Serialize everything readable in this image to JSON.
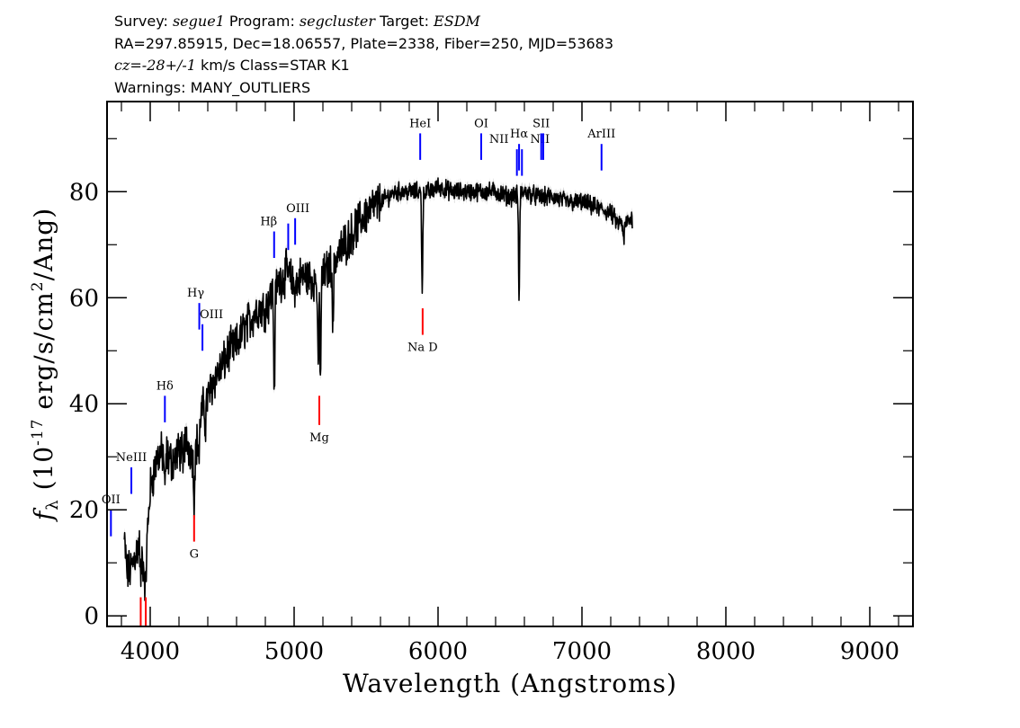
{
  "header": {
    "survey_label": "Survey: ",
    "survey": "segue1",
    "program_label": " Program: ",
    "program": "segcluster",
    "target_label": " Target: ",
    "target": "ESDM",
    "line2": "RA=297.85915, Dec=18.06557, Plate=2338, Fiber=250, MJD=53683",
    "cz_label": "cz",
    "cz_value": "=-28+/-1",
    "cz_rest": " km/s Class=STAR K1",
    "line4": "Warnings: MANY_OUTLIERS"
  },
  "chart_data": {
    "type": "line",
    "title": "",
    "xlabel": "Wavelength (Angstroms)",
    "ylabel_parts": {
      "f": "f",
      "sub": "λ",
      "mid": " (10",
      "exp1": "-17",
      "rest1": " erg/s/cm",
      "exp2": "2",
      "rest2": "/Ang)"
    },
    "xlim": [
      3700,
      9300
    ],
    "ylim": [
      -2,
      97
    ],
    "x_ticks": [
      4000,
      5000,
      6000,
      7000,
      8000,
      9000
    ],
    "x_tick_labels": [
      "4000",
      "5000",
      "6000",
      "7000",
      "8000",
      "9000"
    ],
    "y_ticks": [
      0,
      20,
      40,
      60,
      80
    ],
    "y_tick_labels": [
      "0",
      "20",
      "40",
      "60",
      "80"
    ],
    "grid": false,
    "spectrum_knots": [
      [
        3820,
        14
      ],
      [
        3840,
        8
      ],
      [
        3870,
        9
      ],
      [
        3900,
        12
      ],
      [
        3930,
        14
      ],
      [
        3960,
        8
      ],
      [
        3980,
        15
      ],
      [
        4000,
        24
      ],
      [
        4050,
        30
      ],
      [
        4100,
        31
      ],
      [
        4150,
        29
      ],
      [
        4200,
        31
      ],
      [
        4250,
        33
      ],
      [
        4300,
        30
      ],
      [
        4330,
        33
      ],
      [
        4350,
        38
      ],
      [
        4400,
        41
      ],
      [
        4450,
        45
      ],
      [
        4500,
        47
      ],
      [
        4550,
        50
      ],
      [
        4600,
        51
      ],
      [
        4650,
        54
      ],
      [
        4700,
        56
      ],
      [
        4750,
        58
      ],
      [
        4800,
        58
      ],
      [
        4850,
        61
      ],
      [
        4900,
        63
      ],
      [
        4950,
        65
      ],
      [
        5000,
        62
      ],
      [
        5050,
        64
      ],
      [
        5100,
        64
      ],
      [
        5150,
        63
      ],
      [
        5200,
        64
      ],
      [
        5250,
        66
      ],
      [
        5300,
        68
      ],
      [
        5350,
        70
      ],
      [
        5400,
        72
      ],
      [
        5450,
        74
      ],
      [
        5500,
        76
      ],
      [
        5550,
        77
      ],
      [
        5600,
        78
      ],
      [
        5650,
        79
      ],
      [
        5700,
        80
      ],
      [
        5750,
        80
      ],
      [
        5800,
        80
      ],
      [
        5850,
        80
      ],
      [
        5900,
        80
      ],
      [
        5950,
        80
      ],
      [
        6000,
        81
      ],
      [
        6100,
        80
      ],
      [
        6200,
        80
      ],
      [
        6300,
        80
      ],
      [
        6400,
        80
      ],
      [
        6500,
        79
      ],
      [
        6600,
        80
      ],
      [
        6700,
        79
      ],
      [
        6800,
        79
      ],
      [
        6900,
        78
      ],
      [
        7000,
        78
      ],
      [
        7100,
        77
      ],
      [
        7200,
        76
      ],
      [
        7250,
        74
      ],
      [
        7300,
        74
      ],
      [
        7350,
        75
      ]
    ],
    "absorption_dips": [
      [
        3934,
        6
      ],
      [
        3968,
        5
      ],
      [
        4102,
        23
      ],
      [
        4227,
        27
      ],
      [
        4305,
        22
      ],
      [
        4340,
        30
      ],
      [
        4383,
        36
      ],
      [
        4862,
        42
      ],
      [
        5167,
        45
      ],
      [
        5183,
        45
      ],
      [
        5270,
        54
      ],
      [
        5890,
        62
      ],
      [
        6563,
        60
      ],
      [
        7290,
        70
      ]
    ],
    "emission_lines": [
      {
        "label": "OII",
        "lambda": 3727,
        "y0": 15,
        "y1": 20,
        "color": "#0000ff"
      },
      {
        "label": "NeIII",
        "lambda": 3869,
        "y0": 23,
        "y1": 28,
        "color": "#0000ff"
      },
      {
        "label": "Hδ",
        "lambda": 4102,
        "y0": 36.5,
        "y1": 41.5,
        "color": "#0000ff"
      },
      {
        "label": "Hγ",
        "lambda": 4341,
        "y0": 54,
        "y1": 59,
        "color": "#0000ff"
      },
      {
        "label": "OIII",
        "lambda": 4363,
        "y0": 50,
        "y1": 55,
        "color": "#0000ff"
      },
      {
        "label": "Hβ",
        "lambda": 4861,
        "y0": 67.5,
        "y1": 72.5,
        "color": "#0000ff"
      },
      {
        "label": "",
        "lambda": 4959,
        "y0": 69,
        "y1": 74,
        "color": "#0000ff"
      },
      {
        "label": "OIII",
        "lambda": 5007,
        "y0": 70,
        "y1": 75,
        "color": "#0000ff"
      },
      {
        "label": "HeI",
        "lambda": 5876,
        "y0": 86,
        "y1": 91,
        "color": "#0000ff"
      },
      {
        "label": "OI",
        "lambda": 6300,
        "y0": 86,
        "y1": 91,
        "color": "#0000ff"
      },
      {
        "label": "NII",
        "lambda": 6548,
        "y0": 83,
        "y1": 88,
        "color": "#0000ff"
      },
      {
        "label": "Hα",
        "lambda": 6563,
        "y0": 84,
        "y1": 89,
        "color": "#0000ff"
      },
      {
        "label": "NII",
        "lambda": 6583,
        "y0": 83,
        "y1": 88,
        "color": "#0000ff"
      },
      {
        "label": "SII",
        "lambda": 6717,
        "y0": 86,
        "y1": 91,
        "color": "#0000ff"
      },
      {
        "label": "",
        "lambda": 6731,
        "y0": 86,
        "y1": 91,
        "color": "#0000ff"
      },
      {
        "label": "ArIII",
        "lambda": 7136,
        "y0": 84,
        "y1": 89,
        "color": "#0000ff"
      }
    ],
    "absorption_lines": [
      {
        "label": "",
        "lambda": 3934,
        "y0": -2,
        "y1": 3.5,
        "color": "#ff0000"
      },
      {
        "label": "",
        "lambda": 3969,
        "y0": -2,
        "y1": 3.5,
        "color": "#ff0000"
      },
      {
        "label": "G",
        "lambda": 4305,
        "y0": 14,
        "y1": 19,
        "color": "#ff0000"
      },
      {
        "label": "Mg",
        "lambda": 5175,
        "y0": 36,
        "y1": 41.5,
        "color": "#ff0000"
      },
      {
        "label": "Na D",
        "lambda": 5893,
        "y0": 53,
        "y1": 58,
        "color": "#ff0000"
      }
    ],
    "colors": {
      "spectrum": "#000000",
      "error_band": "#aaaaaa",
      "emission": "#0000ff",
      "absorption": "#ff0000",
      "axis": "#000000"
    }
  }
}
